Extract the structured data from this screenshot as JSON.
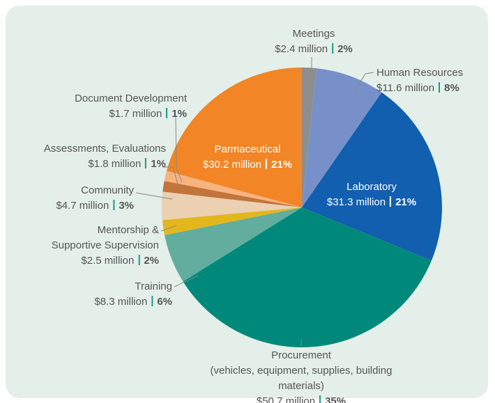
{
  "chart_data": {
    "type": "pie",
    "categories": [
      "Meetings",
      "Human Resources",
      "Laboratory",
      "Procurement\n(vehicles, equipment, supplies, building materials)",
      "Training",
      "Mentorship &\nSupportive Supervision",
      "Community",
      "Assessments, Evaluations",
      "Document Development",
      "Parmaceutical"
    ],
    "values": [
      2.4,
      11.6,
      31.3,
      50.7,
      8.3,
      2.5,
      4.7,
      1.8,
      1.7,
      30.2
    ],
    "value_labels": [
      "$2.4 million",
      "$11.6 million",
      "$31.3 million",
      "$50.7 million",
      "$8.3 million",
      "$2.5 million",
      "$4.7 million",
      "$1.8 million",
      "$1.7 million",
      "$30.2 million"
    ],
    "shares": [
      2,
      8,
      21,
      35,
      6,
      2,
      3,
      1,
      1,
      21
    ],
    "share_labels": [
      "2%",
      "8%",
      "21%",
      "35%",
      "6%",
      "2%",
      "3%",
      "1%",
      "1%",
      "21%"
    ],
    "colors": [
      "#8e8e8e",
      "#7890ca",
      "#115fae",
      "#00897a",
      "#62ad9e",
      "#e3b71b",
      "#ebd0b2",
      "#c2743b",
      "#f8b47f",
      "#f28526"
    ]
  }
}
